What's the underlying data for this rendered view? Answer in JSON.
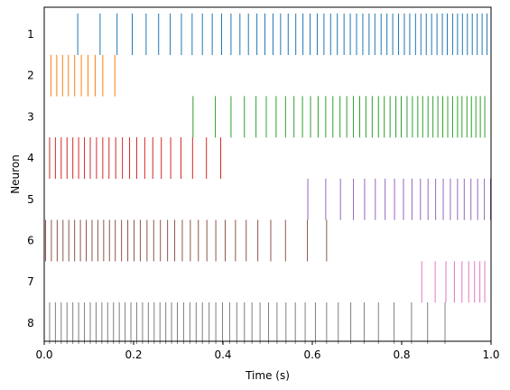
{
  "chart_data": {
    "type": "eventplot",
    "title": "",
    "xlabel": "Time (s)",
    "ylabel": "Neuron",
    "xlim": [
      0.0,
      1.0
    ],
    "x_ticks": [
      "0.0",
      "0.2",
      "0.4",
      "0.6",
      "0.8",
      "1.0"
    ],
    "y_tick_labels": [
      "1",
      "2",
      "3",
      "4",
      "5",
      "6",
      "7",
      "8"
    ],
    "grid": false,
    "series": [
      {
        "label": "1",
        "color": "#1f77b4",
        "events": [
          0.075,
          0.125,
          0.163,
          0.197,
          0.228,
          0.256,
          0.282,
          0.307,
          0.331,
          0.354,
          0.376,
          0.397,
          0.418,
          0.438,
          0.457,
          0.476,
          0.494,
          0.512,
          0.529,
          0.546,
          0.563,
          0.579,
          0.595,
          0.611,
          0.626,
          0.641,
          0.656,
          0.671,
          0.685,
          0.699,
          0.713,
          0.727,
          0.74,
          0.754,
          0.767,
          0.78,
          0.793,
          0.806,
          0.818,
          0.831,
          0.843,
          0.855,
          0.867,
          0.879,
          0.891,
          0.902,
          0.914,
          0.925,
          0.936,
          0.947,
          0.958,
          0.969,
          0.98,
          0.991
        ]
      },
      {
        "label": "2",
        "color": "#ff7f0e",
        "events": [
          0.015,
          0.028,
          0.041,
          0.054,
          0.068,
          0.083,
          0.098,
          0.114,
          0.131,
          0.158
        ]
      },
      {
        "label": "3",
        "color": "#2ca02c",
        "events": [
          0.333,
          0.383,
          0.418,
          0.448,
          0.474,
          0.497,
          0.519,
          0.54,
          0.559,
          0.578,
          0.596,
          0.613,
          0.63,
          0.646,
          0.662,
          0.677,
          0.692,
          0.706,
          0.72,
          0.734,
          0.748,
          0.761,
          0.774,
          0.787,
          0.799,
          0.812,
          0.824,
          0.836,
          0.847,
          0.859,
          0.87,
          0.881,
          0.892,
          0.903,
          0.914,
          0.925,
          0.935,
          0.946,
          0.956,
          0.966,
          0.976,
          0.986
        ]
      },
      {
        "label": "4",
        "color": "#d62728",
        "events": [
          0.012,
          0.025,
          0.038,
          0.051,
          0.064,
          0.077,
          0.09,
          0.103,
          0.117,
          0.131,
          0.145,
          0.16,
          0.175,
          0.191,
          0.207,
          0.225,
          0.243,
          0.262,
          0.283,
          0.306,
          0.332,
          0.363,
          0.395
        ]
      },
      {
        "label": "5",
        "color": "#9467bd",
        "events": [
          0.59,
          0.63,
          0.663,
          0.692,
          0.717,
          0.741,
          0.763,
          0.784,
          0.804,
          0.823,
          0.842,
          0.859,
          0.876,
          0.893,
          0.909,
          0.925,
          0.94,
          0.955,
          0.97,
          0.985,
          0.999
        ]
      },
      {
        "label": "6",
        "color": "#8c564b",
        "events": [
          0.003,
          0.016,
          0.029,
          0.042,
          0.055,
          0.068,
          0.081,
          0.094,
          0.107,
          0.12,
          0.133,
          0.146,
          0.159,
          0.173,
          0.187,
          0.201,
          0.215,
          0.23,
          0.245,
          0.26,
          0.276,
          0.292,
          0.309,
          0.327,
          0.345,
          0.364,
          0.384,
          0.405,
          0.428,
          0.452,
          0.478,
          0.507,
          0.54,
          0.589,
          0.632
        ]
      },
      {
        "label": "7",
        "color": "#e377c2",
        "events": [
          0.845,
          0.875,
          0.899,
          0.918,
          0.935,
          0.95,
          0.963,
          0.975,
          0.986
        ]
      },
      {
        "label": "8",
        "color": "#7f7f7f",
        "events": [
          0.012,
          0.025,
          0.038,
          0.051,
          0.064,
          0.077,
          0.09,
          0.103,
          0.116,
          0.129,
          0.142,
          0.155,
          0.168,
          0.181,
          0.194,
          0.207,
          0.22,
          0.233,
          0.246,
          0.259,
          0.272,
          0.285,
          0.298,
          0.312,
          0.326,
          0.34,
          0.354,
          0.369,
          0.384,
          0.399,
          0.415,
          0.431,
          0.448,
          0.465,
          0.483,
          0.502,
          0.521,
          0.541,
          0.562,
          0.584,
          0.607,
          0.632,
          0.658,
          0.686,
          0.716,
          0.748,
          0.783,
          0.822,
          0.858,
          0.897
        ]
      }
    ]
  }
}
